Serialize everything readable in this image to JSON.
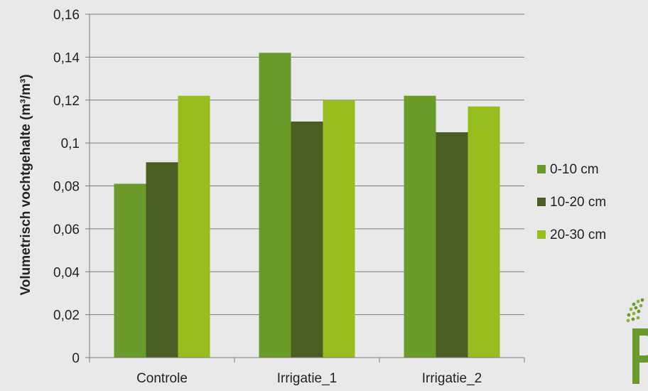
{
  "chart_data": {
    "type": "bar",
    "ylabel": "Volumetrisch vochtgehalte (m³/m³)",
    "xlabel": "",
    "categories": [
      "Controle",
      "Irrigatie_1",
      "Irrigatie_2"
    ],
    "series": [
      {
        "name": "0-10 cm",
        "values": [
          0.081,
          0.142,
          0.122
        ],
        "color": "#6a9a2a"
      },
      {
        "name": "10-20 cm",
        "values": [
          0.091,
          0.11,
          0.105
        ],
        "color": "#4a5e24"
      },
      {
        "name": "20-30 cm",
        "values": [
          0.122,
          0.12,
          0.117
        ],
        "color": "#98bd1f"
      }
    ],
    "ylim": [
      0,
      0.16
    ],
    "yticks": [
      0,
      0.02,
      0.04,
      0.06,
      0.08,
      0.1,
      0.12,
      0.14,
      0.16
    ],
    "ytick_labels": [
      "0",
      "0,02",
      "0,04",
      "0,06",
      "0,08",
      "0,1",
      "0,12",
      "0,14",
      "0,16"
    ],
    "grid": true,
    "legend_position": "right"
  },
  "logo": {
    "icon": "leaf-logo-icon",
    "color": "#6a9a2a"
  }
}
